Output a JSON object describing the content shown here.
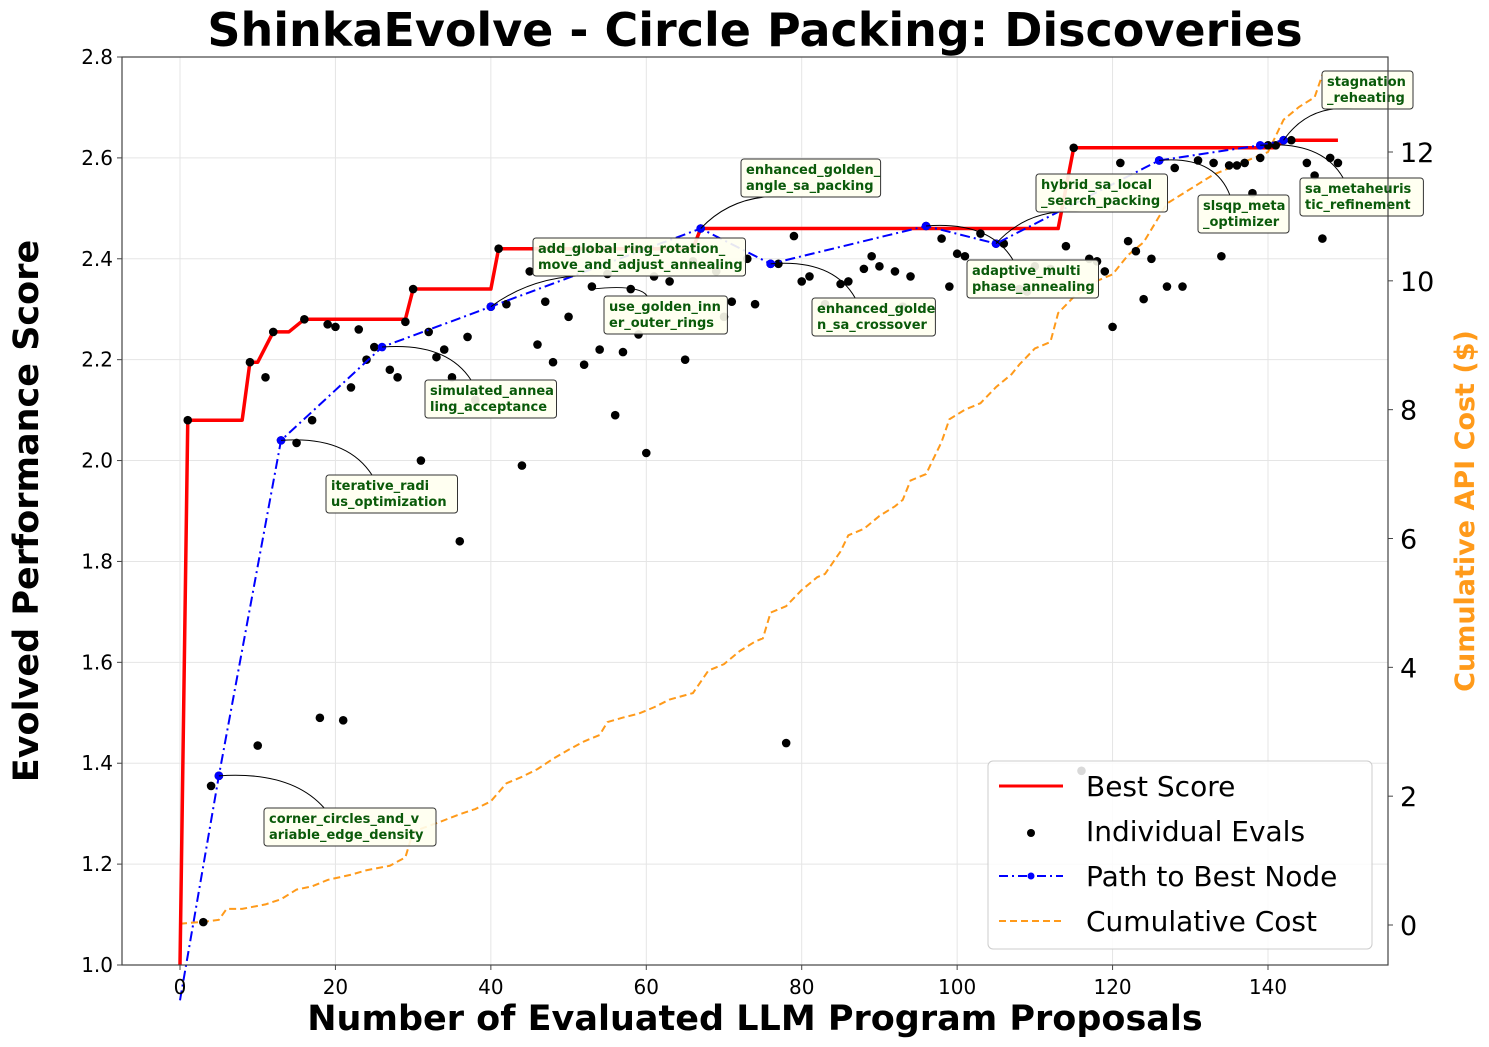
{
  "chart_data": {
    "type": "line",
    "title": "ShinkaEvolve - Circle Packing: Discoveries",
    "xlabel": "Number of Evaluated LLM Program Proposals",
    "ylabel": "Evolved Performance Score",
    "ylabel_right": "Cumulative API Cost ($)",
    "xlim": [
      -7.5,
      156.5
    ],
    "ylim": [
      1.0,
      2.8
    ],
    "ylim_right": [
      -0.6,
      13.5
    ],
    "grid": true,
    "x_ticks": [
      0,
      20,
      40,
      60,
      80,
      100,
      120,
      140
    ],
    "y_ticks": [
      "1.0",
      "1.2",
      "1.4",
      "1.6",
      "1.8",
      "2.0",
      "2.2",
      "2.4",
      "2.6",
      "2.8"
    ],
    "y_ticks_right": [
      0,
      2,
      4,
      6,
      8,
      10,
      12
    ],
    "colors": {
      "best_score": "#ff0000",
      "evals": "#000000",
      "path": "#0000ff",
      "cost": "#ff9a1a",
      "annotation_text": "#0a5a0a",
      "annotation_bg": "#fffff0"
    },
    "legend": {
      "placement": "lower-right",
      "entries": [
        "Best Score",
        "Individual Evals",
        "Path to Best Node",
        "Cumulative Cost"
      ]
    },
    "series": [
      {
        "name": "Best Score",
        "kind": "step",
        "points": [
          [
            0,
            1.0
          ],
          [
            1,
            2.08
          ],
          [
            8,
            2.08
          ],
          [
            9,
            2.195
          ],
          [
            10,
            2.195
          ],
          [
            12,
            2.255
          ],
          [
            14,
            2.255
          ],
          [
            16,
            2.28
          ],
          [
            29,
            2.28
          ],
          [
            30,
            2.34
          ],
          [
            40,
            2.34
          ],
          [
            41,
            2.42
          ],
          [
            66,
            2.42
          ],
          [
            67,
            2.46
          ],
          [
            113,
            2.46
          ],
          [
            115,
            2.62
          ],
          [
            141,
            2.62
          ],
          [
            142,
            2.635
          ],
          [
            149,
            2.635
          ]
        ]
      },
      {
        "name": "Individual Evals",
        "kind": "scatter",
        "points": [
          [
            1,
            2.08
          ],
          [
            3,
            1.085
          ],
          [
            4,
            1.355
          ],
          [
            5,
            1.375
          ],
          [
            9,
            2.195
          ],
          [
            10,
            1.435
          ],
          [
            11,
            2.165
          ],
          [
            12,
            2.255
          ],
          [
            13,
            2.04
          ],
          [
            15,
            2.035
          ],
          [
            16,
            2.28
          ],
          [
            17,
            2.08
          ],
          [
            18,
            1.49
          ],
          [
            19,
            2.27
          ],
          [
            20,
            2.265
          ],
          [
            21,
            1.485
          ],
          [
            22,
            2.145
          ],
          [
            23,
            2.26
          ],
          [
            24,
            2.2
          ],
          [
            25,
            2.225
          ],
          [
            27,
            2.18
          ],
          [
            28,
            2.165
          ],
          [
            29,
            2.275
          ],
          [
            30,
            2.34
          ],
          [
            31,
            2.0
          ],
          [
            32,
            2.255
          ],
          [
            33,
            2.205
          ],
          [
            34,
            2.22
          ],
          [
            35,
            2.165
          ],
          [
            36,
            1.84
          ],
          [
            37,
            2.245
          ],
          [
            38,
            2.12
          ],
          [
            40,
            2.305
          ],
          [
            41,
            2.42
          ],
          [
            42,
            2.31
          ],
          [
            44,
            1.99
          ],
          [
            45,
            2.375
          ],
          [
            46,
            2.23
          ],
          [
            47,
            2.315
          ],
          [
            48,
            2.195
          ],
          [
            50,
            2.285
          ],
          [
            52,
            2.19
          ],
          [
            53,
            2.345
          ],
          [
            54,
            2.22
          ],
          [
            55,
            2.37
          ],
          [
            56,
            2.09
          ],
          [
            57,
            2.215
          ],
          [
            58,
            2.34
          ],
          [
            59,
            2.25
          ],
          [
            60,
            2.015
          ],
          [
            61,
            2.365
          ],
          [
            63,
            2.355
          ],
          [
            65,
            2.2
          ],
          [
            66,
            2.395
          ],
          [
            67,
            2.46
          ],
          [
            69,
            2.375
          ],
          [
            70,
            2.285
          ],
          [
            71,
            2.315
          ],
          [
            73,
            2.4
          ],
          [
            74,
            2.31
          ],
          [
            76,
            2.39
          ],
          [
            77,
            2.39
          ],
          [
            78,
            1.44
          ],
          [
            79,
            2.445
          ],
          [
            80,
            2.355
          ],
          [
            81,
            2.365
          ],
          [
            83,
            2.31
          ],
          [
            85,
            2.35
          ],
          [
            86,
            2.355
          ],
          [
            87,
            2.3
          ],
          [
            88,
            2.38
          ],
          [
            89,
            2.405
          ],
          [
            90,
            2.385
          ],
          [
            92,
            2.375
          ],
          [
            93,
            2.305
          ],
          [
            94,
            2.365
          ],
          [
            96,
            2.465
          ],
          [
            98,
            2.44
          ],
          [
            99,
            2.345
          ],
          [
            100,
            2.41
          ],
          [
            101,
            2.405
          ],
          [
            103,
            2.45
          ],
          [
            105,
            2.43
          ],
          [
            106,
            2.43
          ],
          [
            108,
            2.34
          ],
          [
            109,
            2.335
          ],
          [
            110,
            2.385
          ],
          [
            112,
            2.38
          ],
          [
            114,
            2.425
          ],
          [
            115,
            2.62
          ],
          [
            116,
            1.385
          ],
          [
            117,
            2.4
          ],
          [
            118,
            2.395
          ],
          [
            119,
            2.375
          ],
          [
            120,
            2.265
          ],
          [
            121,
            2.59
          ],
          [
            122,
            2.435
          ],
          [
            123,
            2.415
          ],
          [
            124,
            2.32
          ],
          [
            125,
            2.4
          ],
          [
            126,
            2.595
          ],
          [
            127,
            2.345
          ],
          [
            128,
            2.58
          ],
          [
            129,
            2.345
          ],
          [
            131,
            2.595
          ],
          [
            133,
            2.59
          ],
          [
            134,
            2.405
          ],
          [
            135,
            2.585
          ],
          [
            136,
            2.585
          ],
          [
            137,
            2.59
          ],
          [
            138,
            2.53
          ],
          [
            139,
            2.6
          ],
          [
            140,
            2.625
          ],
          [
            141,
            2.625
          ],
          [
            142,
            2.635
          ],
          [
            143,
            2.635
          ],
          [
            145,
            2.59
          ],
          [
            146,
            2.565
          ],
          [
            147,
            2.44
          ],
          [
            148,
            2.6
          ],
          [
            149,
            2.59
          ]
        ]
      },
      {
        "name": "Path to Best Node",
        "kind": "line-markers",
        "points": [
          [
            0,
            0.93
          ],
          [
            5,
            1.375
          ],
          [
            13,
            2.04
          ],
          [
            26,
            2.225
          ],
          [
            40,
            2.305
          ],
          [
            67,
            2.46
          ],
          [
            76,
            2.39
          ],
          [
            96,
            2.465
          ],
          [
            105,
            2.43
          ],
          [
            126,
            2.595
          ],
          [
            139,
            2.625
          ],
          [
            142,
            2.635
          ]
        ]
      },
      {
        "name": "Cumulative Cost",
        "kind": "line",
        "axis": "right",
        "points": [
          [
            0,
            0.02
          ],
          [
            3,
            0.05
          ],
          [
            5,
            0.08
          ],
          [
            6,
            0.25
          ],
          [
            8,
            0.25
          ],
          [
            11,
            0.32
          ],
          [
            13,
            0.4
          ],
          [
            15,
            0.55
          ],
          [
            17,
            0.6
          ],
          [
            19,
            0.7
          ],
          [
            22,
            0.78
          ],
          [
            24,
            0.85
          ],
          [
            27,
            0.92
          ],
          [
            29,
            1.05
          ],
          [
            30,
            1.45
          ],
          [
            33,
            1.58
          ],
          [
            36,
            1.72
          ],
          [
            38,
            1.8
          ],
          [
            40,
            1.92
          ],
          [
            42,
            2.2
          ],
          [
            44,
            2.3
          ],
          [
            46,
            2.42
          ],
          [
            48,
            2.58
          ],
          [
            50,
            2.72
          ],
          [
            52,
            2.85
          ],
          [
            54,
            2.95
          ],
          [
            55,
            3.15
          ],
          [
            57,
            3.22
          ],
          [
            59,
            3.28
          ],
          [
            61,
            3.38
          ],
          [
            63,
            3.5
          ],
          [
            66,
            3.6
          ],
          [
            68,
            3.95
          ],
          [
            70,
            4.05
          ],
          [
            72,
            4.25
          ],
          [
            74,
            4.4
          ],
          [
            75,
            4.45
          ],
          [
            76,
            4.85
          ],
          [
            78,
            4.95
          ],
          [
            80,
            5.2
          ],
          [
            82,
            5.4
          ],
          [
            83,
            5.45
          ],
          [
            85,
            5.8
          ],
          [
            86,
            6.05
          ],
          [
            88,
            6.15
          ],
          [
            90,
            6.35
          ],
          [
            92,
            6.5
          ],
          [
            93,
            6.6
          ],
          [
            94,
            6.9
          ],
          [
            96,
            7.0
          ],
          [
            98,
            7.5
          ],
          [
            99,
            7.85
          ],
          [
            101,
            8.0
          ],
          [
            103,
            8.1
          ],
          [
            105,
            8.35
          ],
          [
            107,
            8.55
          ],
          [
            108,
            8.7
          ],
          [
            110,
            8.95
          ],
          [
            112,
            9.05
          ],
          [
            113,
            9.5
          ],
          [
            115,
            9.75
          ],
          [
            117,
            9.9
          ],
          [
            118,
            10.0
          ],
          [
            120,
            10.1
          ],
          [
            122,
            10.4
          ],
          [
            124,
            10.6
          ],
          [
            125,
            10.8
          ],
          [
            126,
            11.0
          ],
          [
            127,
            11.2
          ],
          [
            129,
            11.35
          ],
          [
            131,
            11.5
          ],
          [
            133,
            11.65
          ],
          [
            136,
            11.8
          ],
          [
            138,
            11.9
          ],
          [
            140,
            12.0
          ],
          [
            141,
            12.25
          ],
          [
            142,
            12.5
          ],
          [
            144,
            12.7
          ],
          [
            146,
            12.85
          ],
          [
            147,
            13.2
          ]
        ]
      }
    ],
    "annotations": [
      {
        "text_lines": [
          "corner_circles_and_v",
          "ariable_edge_density"
        ],
        "x": 5,
        "y": 1.375
      },
      {
        "text_lines": [
          "iterative_radi",
          "us_optimization"
        ],
        "x": 13,
        "y": 2.04
      },
      {
        "text_lines": [
          "simulated_annea",
          "ling_acceptance"
        ],
        "x": 26,
        "y": 2.225
      },
      {
        "text_lines": [
          "add_global_ring_rotation_",
          "move_and_adjust_annealing"
        ],
        "x": 40,
        "y": 2.305
      },
      {
        "text_lines": [
          "use_golden_inn",
          "er_outer_rings"
        ],
        "x": 53,
        "y": 2.34
      },
      {
        "text_lines": [
          "enhanced_golden_",
          "angle_sa_packing"
        ],
        "x": 67,
        "y": 2.46
      },
      {
        "text_lines": [
          "enhanced_golde",
          "n_sa_crossover"
        ],
        "x": 76,
        "y": 2.39
      },
      {
        "text_lines": [
          "adaptive_multi",
          "phase_annealing"
        ],
        "x": 96,
        "y": 2.465
      },
      {
        "text_lines": [
          "hybrid_sa_local",
          "_search_packing"
        ],
        "x": 105,
        "y": 2.43
      },
      {
        "text_lines": [
          "slsqp_meta",
          "_optimizer"
        ],
        "x": 126,
        "y": 2.595
      },
      {
        "text_lines": [
          "sa_metaheuris",
          "tic_refinement"
        ],
        "x": 139,
        "y": 2.625
      },
      {
        "text_lines": [
          "stagnation",
          "_reheating"
        ],
        "x": 142,
        "y": 2.635
      }
    ]
  }
}
